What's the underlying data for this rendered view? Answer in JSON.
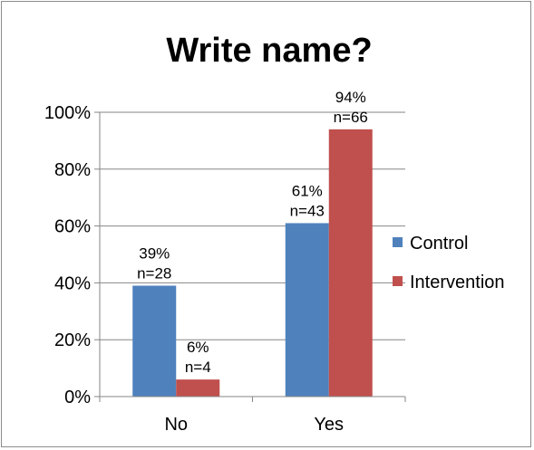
{
  "chart_data": {
    "type": "bar",
    "title": "Write name?",
    "categories": [
      "No",
      "Yes"
    ],
    "series": [
      {
        "name": "Control",
        "color": "#4f81bd",
        "values": [
          39,
          61
        ],
        "labels": [
          [
            "39%",
            "n=28"
          ],
          [
            "61%",
            "n=43"
          ]
        ]
      },
      {
        "name": "Intervention",
        "color": "#c0504d",
        "values": [
          6,
          94
        ],
        "labels": [
          [
            "6%",
            "n=4"
          ],
          [
            "94%",
            "n=66"
          ]
        ]
      }
    ],
    "y_ticks": [
      "0%",
      "20%",
      "40%",
      "60%",
      "80%",
      "100%"
    ],
    "ylim": [
      0,
      100
    ],
    "grid": true,
    "legend_position": "right"
  }
}
